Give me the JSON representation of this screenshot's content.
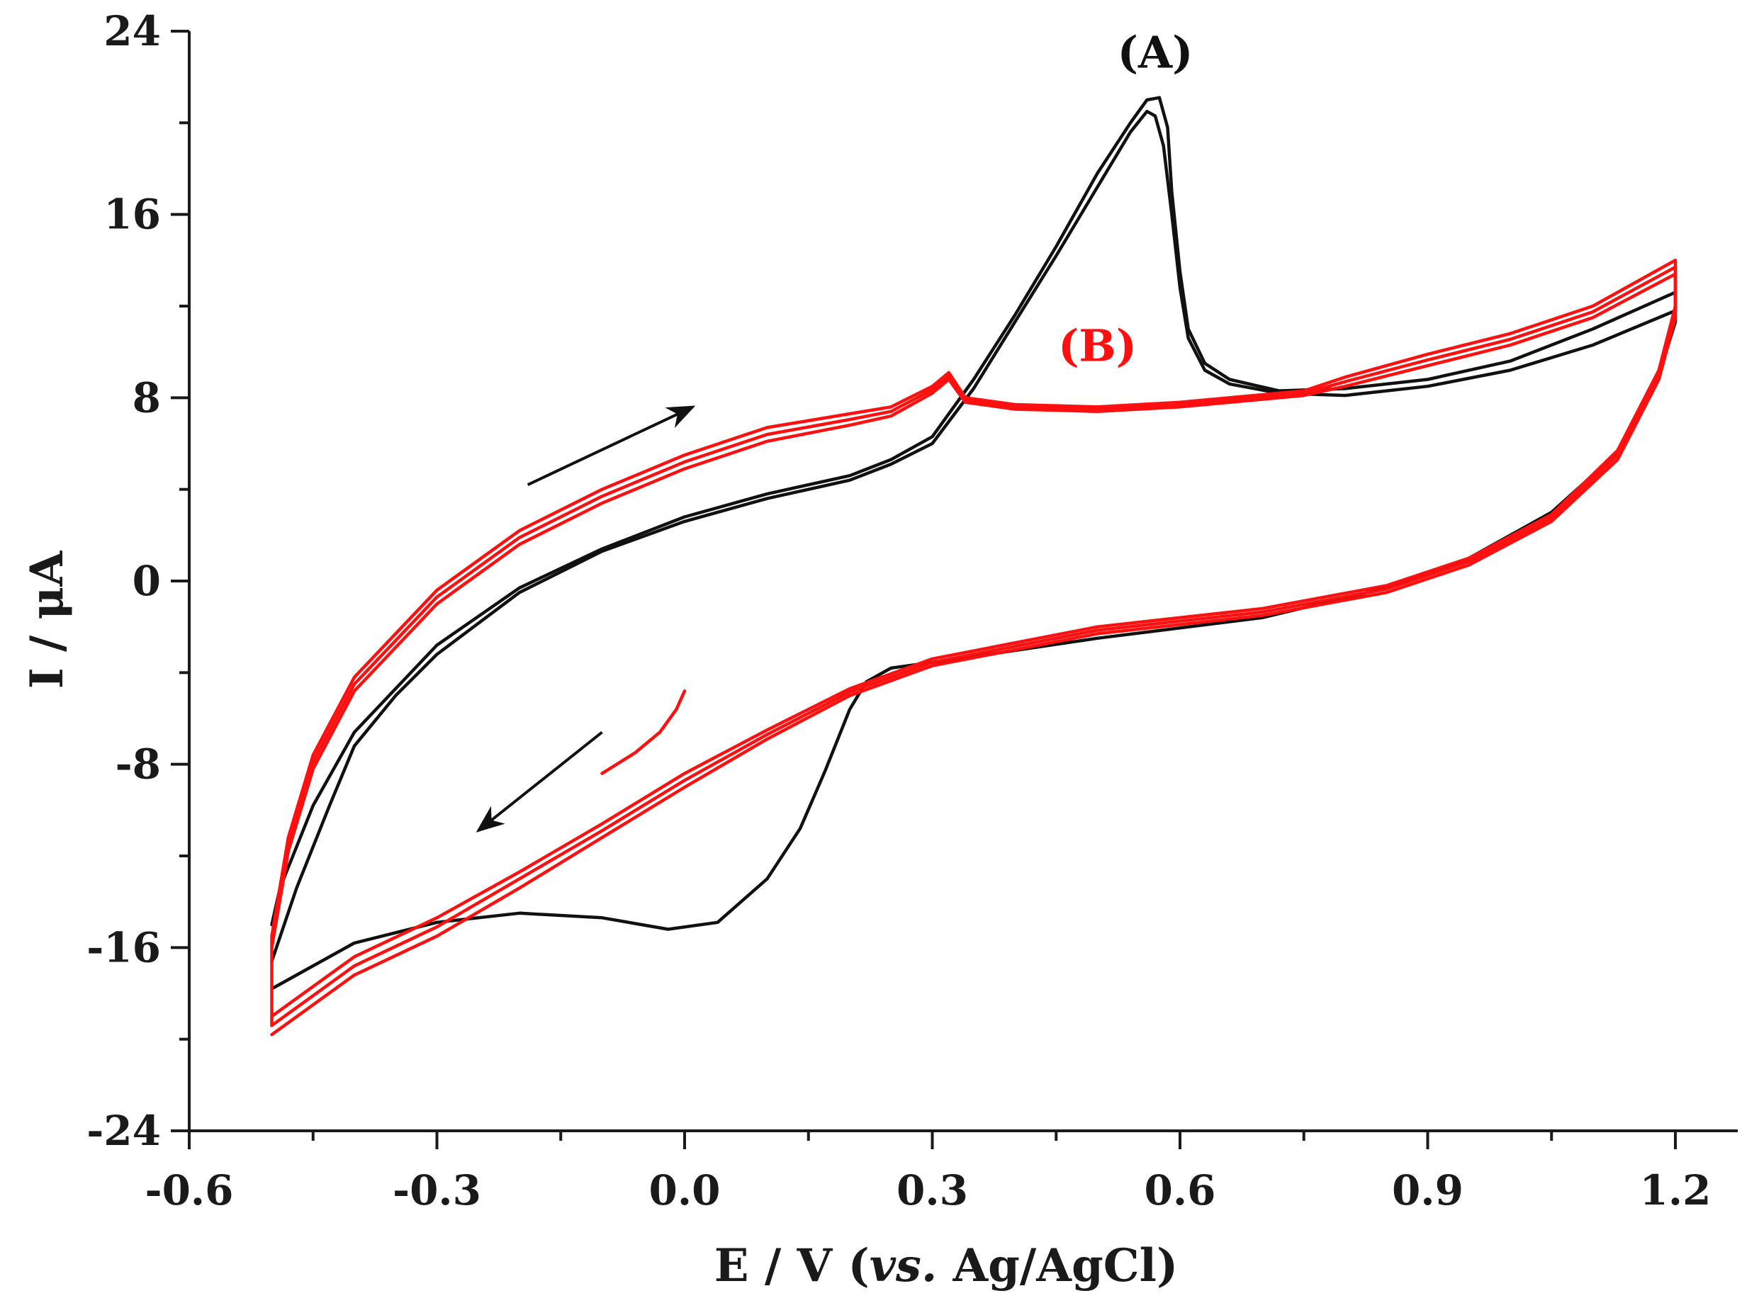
{
  "chart_data": {
    "type": "line",
    "title": "",
    "xlabel_parts": [
      "E / V (",
      "vs.",
      " Ag/AgCl)"
    ],
    "ylabel": "I / μA",
    "xlim": [
      -0.6,
      1.35
    ],
    "ylim": [
      -24,
      24
    ],
    "x_ticks": [
      -0.6,
      -0.3,
      0.0,
      0.3,
      0.6,
      0.9,
      1.2
    ],
    "x_tick_labels": [
      "-0.6",
      "-0.3",
      "0.0",
      "0.3",
      "0.6",
      "0.9",
      "1.2"
    ],
    "y_ticks": [
      24,
      16,
      8,
      0,
      -8,
      -16,
      -24
    ],
    "y_tick_labels": [
      "24",
      "16",
      "8",
      "0",
      "-8",
      "-16",
      "-24"
    ],
    "colors": {
      "A": "#111111",
      "B": "#ff1010",
      "axis": "#1a1a1a"
    },
    "annotations": [
      {
        "id": "label-A",
        "text": "(A)",
        "x": 0.57,
        "y": 22.4,
        "color": "#111111"
      },
      {
        "id": "label-B",
        "text": "(B)",
        "x": 0.5,
        "y": 9.6,
        "color": "#ff1010"
      }
    ],
    "arrows": [
      {
        "name": "forward-scan-arrow",
        "from": [
          -0.19,
          4.2
        ],
        "to": [
          0.01,
          7.6
        ]
      },
      {
        "name": "reverse-scan-arrow",
        "from": [
          -0.1,
          -6.6
        ],
        "to": [
          -0.25,
          -10.9
        ]
      }
    ],
    "series": [
      {
        "name": "(A)",
        "color_key": "A",
        "lines": [
          [
            [
              -0.5,
              -17.8
            ],
            [
              -0.4,
              -15.8
            ],
            [
              -0.3,
              -14.9
            ],
            [
              -0.2,
              -14.5
            ],
            [
              -0.1,
              -14.7
            ],
            [
              -0.02,
              -15.2
            ],
            [
              0.04,
              -14.9
            ],
            [
              0.1,
              -13.0
            ],
            [
              0.14,
              -10.8
            ],
            [
              0.17,
              -8.3
            ],
            [
              0.2,
              -5.6
            ],
            [
              0.22,
              -4.4
            ],
            [
              0.25,
              -3.8
            ],
            [
              0.35,
              -3.3
            ],
            [
              0.5,
              -2.5
            ],
            [
              0.7,
              -1.6
            ],
            [
              0.85,
              -0.3
            ],
            [
              0.95,
              1.0
            ],
            [
              1.05,
              3.0
            ],
            [
              1.13,
              5.6
            ],
            [
              1.18,
              9.0
            ],
            [
              1.2,
              11.3
            ],
            [
              1.2,
              12.6
            ],
            [
              1.1,
              11.0
            ],
            [
              1.0,
              9.6
            ],
            [
              0.9,
              8.8
            ],
            [
              0.8,
              8.4
            ],
            [
              0.72,
              8.3
            ],
            [
              0.66,
              8.8
            ],
            [
              0.63,
              9.5
            ],
            [
              0.61,
              11.0
            ],
            [
              0.6,
              13.5
            ],
            [
              0.59,
              17.0
            ],
            [
              0.585,
              19.8
            ],
            [
              0.575,
              21.1
            ],
            [
              0.56,
              21.0
            ],
            [
              0.54,
              20.0
            ],
            [
              0.5,
              17.8
            ],
            [
              0.45,
              14.6
            ],
            [
              0.4,
              11.6
            ],
            [
              0.35,
              8.8
            ],
            [
              0.3,
              6.3
            ],
            [
              0.25,
              5.3
            ],
            [
              0.2,
              4.6
            ],
            [
              0.1,
              3.8
            ],
            [
              0.0,
              2.8
            ],
            [
              -0.1,
              1.4
            ],
            [
              -0.2,
              -0.3
            ],
            [
              -0.3,
              -2.8
            ],
            [
              -0.4,
              -6.6
            ],
            [
              -0.45,
              -9.8
            ],
            [
              -0.49,
              -13.4
            ],
            [
              -0.5,
              -15.0
            ]
          ],
          [
            [
              -0.5,
              -16.6
            ],
            [
              -0.47,
              -13.4
            ],
            [
              -0.43,
              -9.8
            ],
            [
              -0.4,
              -7.2
            ],
            [
              -0.35,
              -5.0
            ],
            [
              -0.3,
              -3.2
            ],
            [
              -0.2,
              -0.5
            ],
            [
              -0.1,
              1.3
            ],
            [
              0.0,
              2.6
            ],
            [
              0.1,
              3.6
            ],
            [
              0.2,
              4.4
            ],
            [
              0.25,
              5.1
            ],
            [
              0.3,
              6.0
            ],
            [
              0.35,
              8.4
            ],
            [
              0.4,
              11.3
            ],
            [
              0.45,
              14.2
            ],
            [
              0.5,
              17.2
            ],
            [
              0.54,
              19.6
            ],
            [
              0.56,
              20.5
            ],
            [
              0.57,
              20.3
            ],
            [
              0.58,
              19.0
            ],
            [
              0.59,
              16.0
            ],
            [
              0.6,
              12.8
            ],
            [
              0.61,
              10.6
            ],
            [
              0.63,
              9.2
            ],
            [
              0.66,
              8.6
            ],
            [
              0.72,
              8.2
            ],
            [
              0.8,
              8.1
            ],
            [
              0.9,
              8.5
            ],
            [
              1.0,
              9.2
            ],
            [
              1.1,
              10.3
            ],
            [
              1.2,
              11.8
            ]
          ]
        ]
      },
      {
        "name": "(B)",
        "color_key": "B",
        "lines": [
          [
            [
              0.0,
              -4.8
            ],
            [
              -0.01,
              -5.6
            ],
            [
              -0.03,
              -6.6
            ],
            [
              -0.06,
              -7.5
            ],
            [
              -0.1,
              -8.4
            ]
          ],
          [
            [
              -0.5,
              -19.8
            ],
            [
              -0.4,
              -17.2
            ],
            [
              -0.3,
              -15.5
            ],
            [
              -0.2,
              -13.4
            ],
            [
              -0.1,
              -11.2
            ],
            [
              0.0,
              -9.0
            ],
            [
              0.1,
              -6.9
            ],
            [
              0.2,
              -5.0
            ],
            [
              0.3,
              -3.7
            ],
            [
              0.5,
              -2.3
            ],
            [
              0.7,
              -1.5
            ],
            [
              0.85,
              -0.5
            ],
            [
              0.95,
              0.7
            ],
            [
              1.05,
              2.6
            ],
            [
              1.13,
              5.3
            ],
            [
              1.18,
              8.8
            ],
            [
              1.2,
              11.5
            ],
            [
              1.2,
              14.0
            ],
            [
              1.1,
              12.0
            ],
            [
              1.0,
              10.8
            ],
            [
              0.9,
              9.9
            ],
            [
              0.8,
              8.9
            ],
            [
              0.75,
              8.3
            ],
            [
              0.6,
              7.8
            ],
            [
              0.5,
              7.6
            ],
            [
              0.4,
              7.7
            ],
            [
              0.34,
              8.0
            ],
            [
              0.32,
              9.1
            ],
            [
              0.3,
              8.5
            ],
            [
              0.25,
              7.6
            ],
            [
              0.2,
              7.3
            ],
            [
              0.1,
              6.7
            ],
            [
              0.0,
              5.5
            ],
            [
              -0.1,
              4.0
            ],
            [
              -0.2,
              2.2
            ],
            [
              -0.3,
              -0.4
            ],
            [
              -0.4,
              -4.2
            ],
            [
              -0.45,
              -7.6
            ],
            [
              -0.48,
              -11.2
            ],
            [
              -0.5,
              -15.5
            ],
            [
              -0.5,
              -19.4
            ]
          ],
          [
            [
              -0.5,
              -19.0
            ],
            [
              -0.4,
              -16.4
            ],
            [
              -0.3,
              -14.7
            ],
            [
              -0.2,
              -12.7
            ],
            [
              -0.1,
              -10.6
            ],
            [
              0.0,
              -8.4
            ],
            [
              0.1,
              -6.5
            ],
            [
              0.2,
              -4.7
            ],
            [
              0.3,
              -3.4
            ],
            [
              0.5,
              -2.0
            ],
            [
              0.7,
              -1.2
            ],
            [
              0.85,
              -0.2
            ],
            [
              0.95,
              1.0
            ],
            [
              1.05,
              2.9
            ],
            [
              1.13,
              5.7
            ],
            [
              1.18,
              9.2
            ],
            [
              1.2,
              12.0
            ],
            [
              1.2,
              13.4
            ],
            [
              1.1,
              11.5
            ],
            [
              1.0,
              10.3
            ],
            [
              0.9,
              9.4
            ],
            [
              0.8,
              8.5
            ],
            [
              0.75,
              8.1
            ],
            [
              0.6,
              7.6
            ],
            [
              0.5,
              7.4
            ],
            [
              0.4,
              7.5
            ],
            [
              0.34,
              7.8
            ],
            [
              0.32,
              8.8
            ],
            [
              0.3,
              8.2
            ],
            [
              0.25,
              7.2
            ],
            [
              0.2,
              6.8
            ],
            [
              0.1,
              6.1
            ],
            [
              0.0,
              4.9
            ],
            [
              -0.1,
              3.4
            ],
            [
              -0.2,
              1.6
            ],
            [
              -0.3,
              -1.0
            ],
            [
              -0.4,
              -4.8
            ],
            [
              -0.45,
              -8.2
            ],
            [
              -0.48,
              -11.8
            ],
            [
              -0.5,
              -16.0
            ]
          ],
          [
            [
              -0.5,
              -19.4
            ],
            [
              -0.4,
              -16.8
            ],
            [
              -0.3,
              -15.1
            ],
            [
              -0.2,
              -13.0
            ],
            [
              -0.1,
              -10.9
            ],
            [
              0.0,
              -8.7
            ],
            [
              0.1,
              -6.7
            ],
            [
              0.2,
              -4.85
            ],
            [
              0.3,
              -3.55
            ],
            [
              0.5,
              -2.15
            ],
            [
              0.7,
              -1.35
            ],
            [
              0.85,
              -0.35
            ],
            [
              0.95,
              0.85
            ],
            [
              1.05,
              2.75
            ],
            [
              1.13,
              5.5
            ],
            [
              1.18,
              9.0
            ],
            [
              1.2,
              11.8
            ],
            [
              1.2,
              13.7
            ],
            [
              1.1,
              11.75
            ],
            [
              1.0,
              10.55
            ],
            [
              0.9,
              9.65
            ],
            [
              0.8,
              8.7
            ],
            [
              0.75,
              8.2
            ],
            [
              0.6,
              7.7
            ],
            [
              0.5,
              7.5
            ],
            [
              0.4,
              7.6
            ],
            [
              0.34,
              7.9
            ],
            [
              0.32,
              8.95
            ],
            [
              0.3,
              8.35
            ],
            [
              0.25,
              7.4
            ],
            [
              0.2,
              7.05
            ],
            [
              0.1,
              6.4
            ],
            [
              0.0,
              5.2
            ],
            [
              -0.1,
              3.7
            ],
            [
              -0.2,
              1.9
            ],
            [
              -0.3,
              -0.7
            ],
            [
              -0.4,
              -4.5
            ],
            [
              -0.45,
              -7.9
            ],
            [
              -0.48,
              -11.5
            ],
            [
              -0.5,
              -15.8
            ]
          ]
        ]
      }
    ]
  }
}
